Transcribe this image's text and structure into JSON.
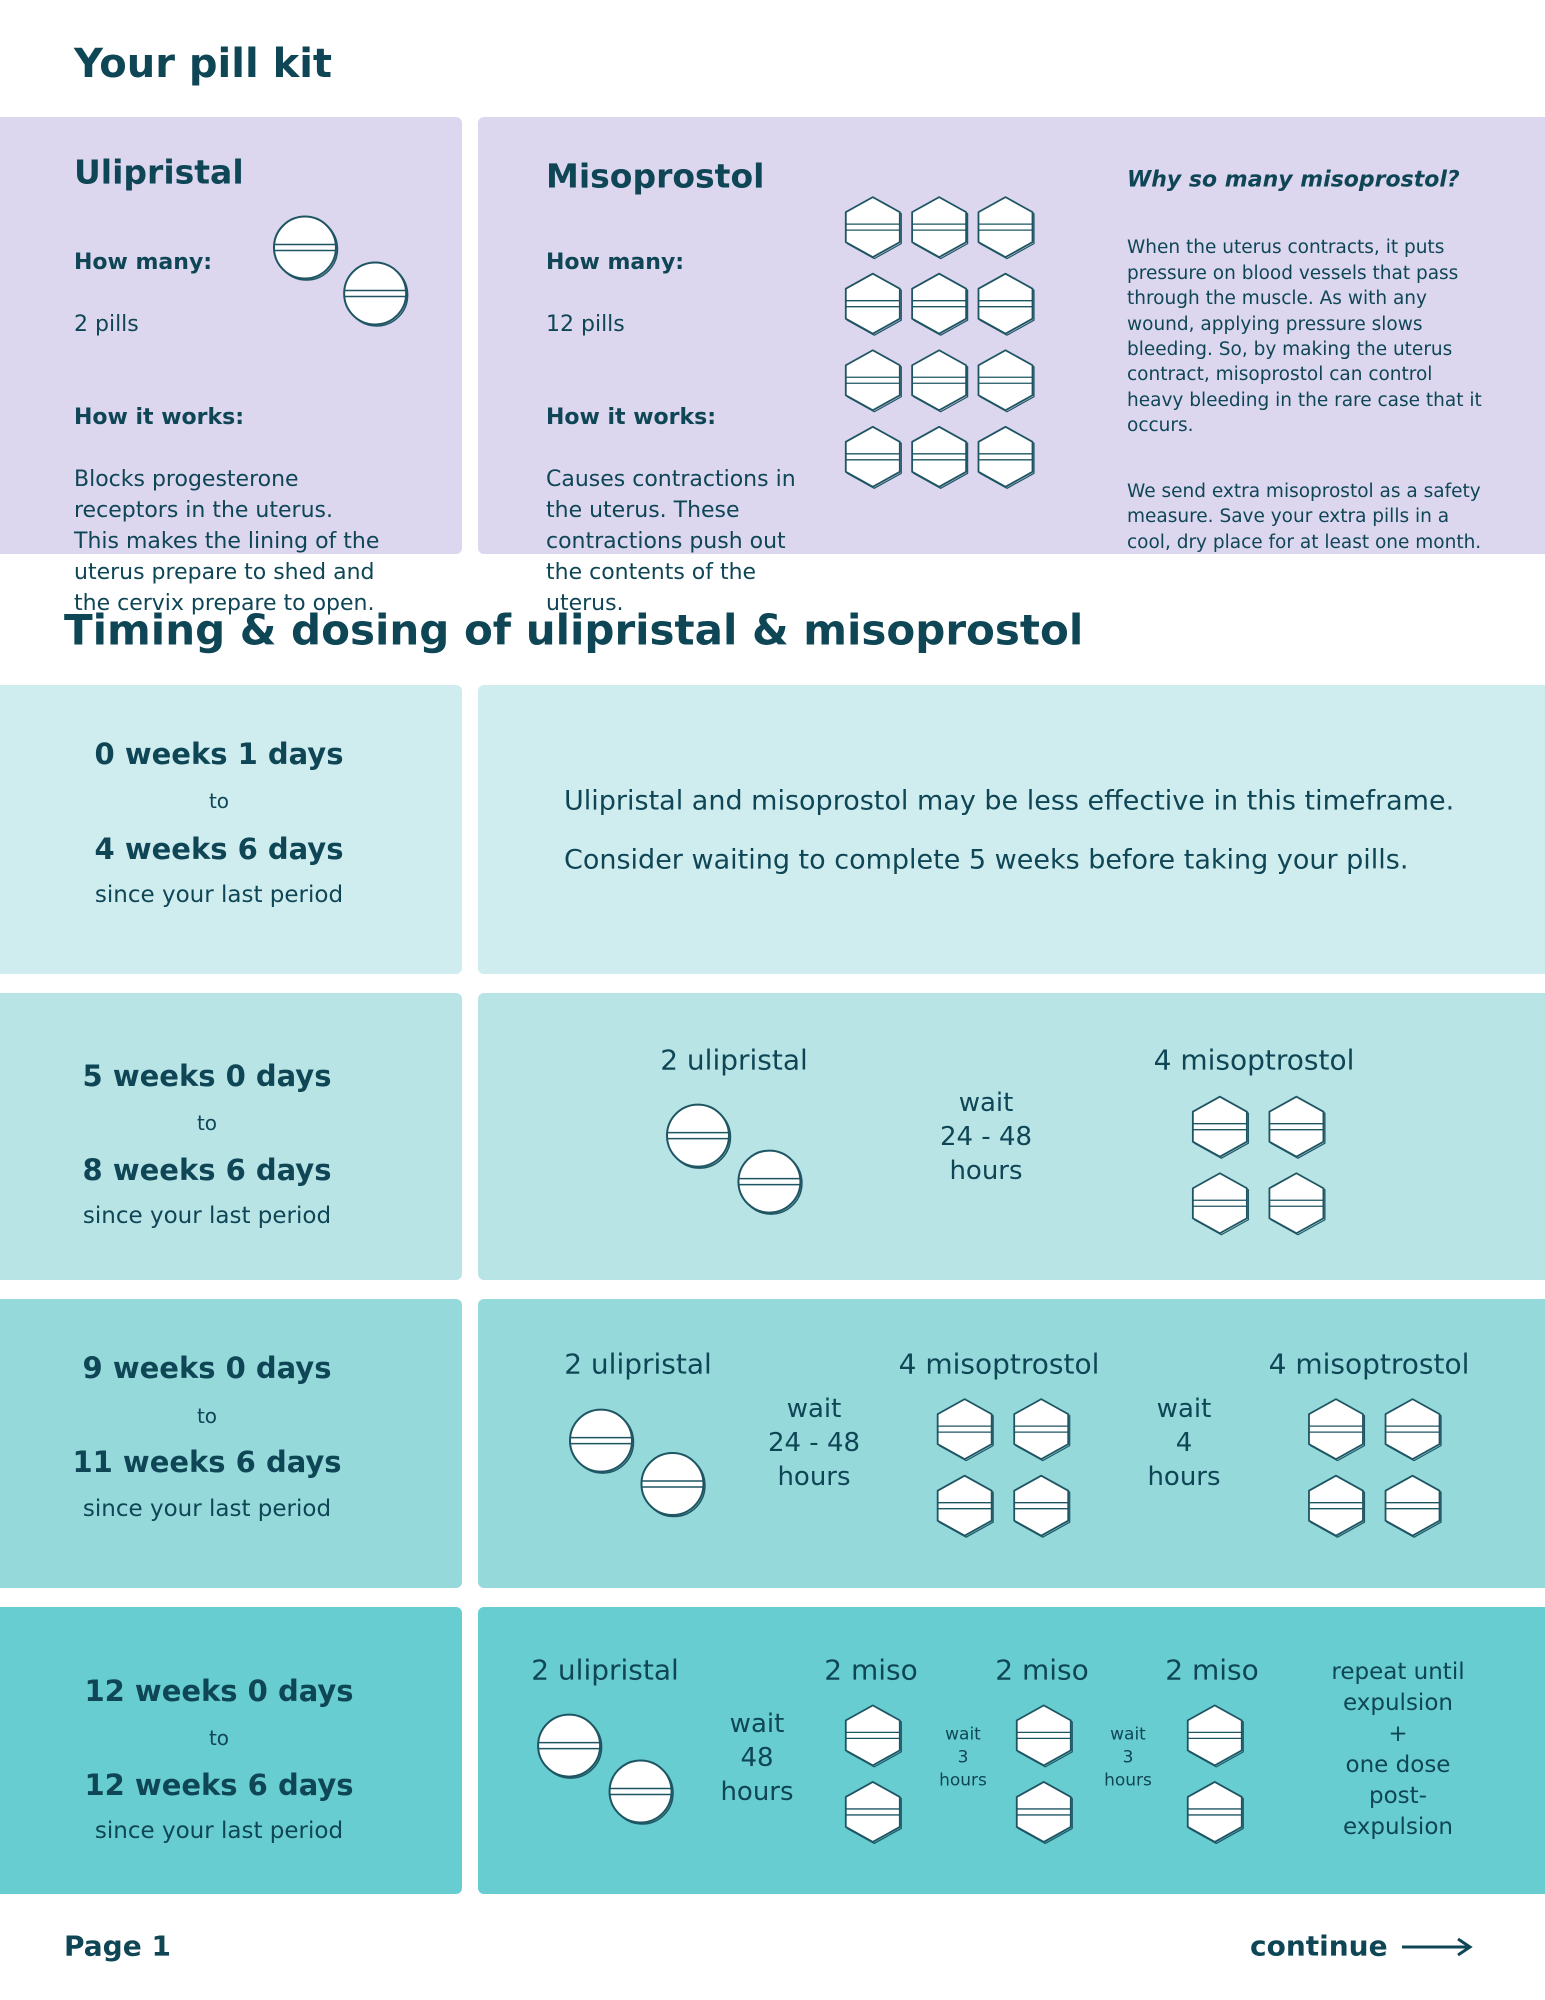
{
  "header": {
    "title": "Your pill kit"
  },
  "kit": {
    "ulipristal": {
      "name": "Ulipristal",
      "how_many_label": "How many:",
      "how_many": "2 pills",
      "how_it_works_label": "How it works:",
      "how_it_works": "Blocks progesterone receptors in the uterus. This makes the lining of the uterus prepare to shed and the cervix prepare to open."
    },
    "misoprostol": {
      "name": "Misoprostol",
      "how_many_label": "How many:",
      "how_many": "12 pills",
      "how_it_works_label": "How it works:",
      "how_it_works": "Causes contractions in the uterus. These contractions push out the contents of the uterus."
    },
    "why": {
      "title": "Why so many misoprostol?",
      "paragraphs": [
        "When the uterus contracts, it puts pressure on blood vessels that pass through the muscle. As with any wound, applying pressure slows bleeding. So, by making the uterus contract, misoprostol can control heavy bleeding in the rare case that it occurs.",
        "We send extra misoprostol as a safety measure. Save your extra pills in a cool, dry place for at least one month."
      ]
    }
  },
  "timing": {
    "title": "Timing & dosing of ulipristal & misoprostol",
    "rows": [
      {
        "from": "0 weeks 1 days",
        "to": "to",
        "until": "4 weeks 6 days",
        "since": "since your last period",
        "notes": [
          "Ulipristal and misoprostol may be less effective in this timeframe.",
          "Consider waiting to complete 5 weeks before taking your pills."
        ]
      },
      {
        "from": "5 weeks 0 days",
        "to": "to",
        "until": "8 weeks 6 days",
        "since": "since your last period",
        "labels": [
          "2 ulipristal",
          "4 misoptrostol"
        ],
        "waits": [
          "wait\n24 - 48\nhours"
        ]
      },
      {
        "from": "9 weeks 0 days",
        "to": "to",
        "until": "11 weeks 6 days",
        "since": "since your last period",
        "labels": [
          "2 ulipristal",
          "4 misoptrostol",
          "4 misoptrostol"
        ],
        "waits": [
          "wait\n24 - 48\nhours",
          "wait\n4\nhours"
        ]
      },
      {
        "from": "12 weeks 0 days",
        "to": "to",
        "until": "12 weeks 6 days",
        "since": "since your last period",
        "labels": [
          "2 ulipristal",
          "2 miso",
          "2 miso",
          "2 miso"
        ],
        "waits": [
          "wait\n48\nhours",
          "wait\n3\nhours",
          "wait\n3\nhours"
        ],
        "repeat": "repeat until\nexpulsion\n+\none dose\npost-expulsion"
      }
    ]
  },
  "footer": {
    "page": "Page 1",
    "continue": "continue"
  }
}
